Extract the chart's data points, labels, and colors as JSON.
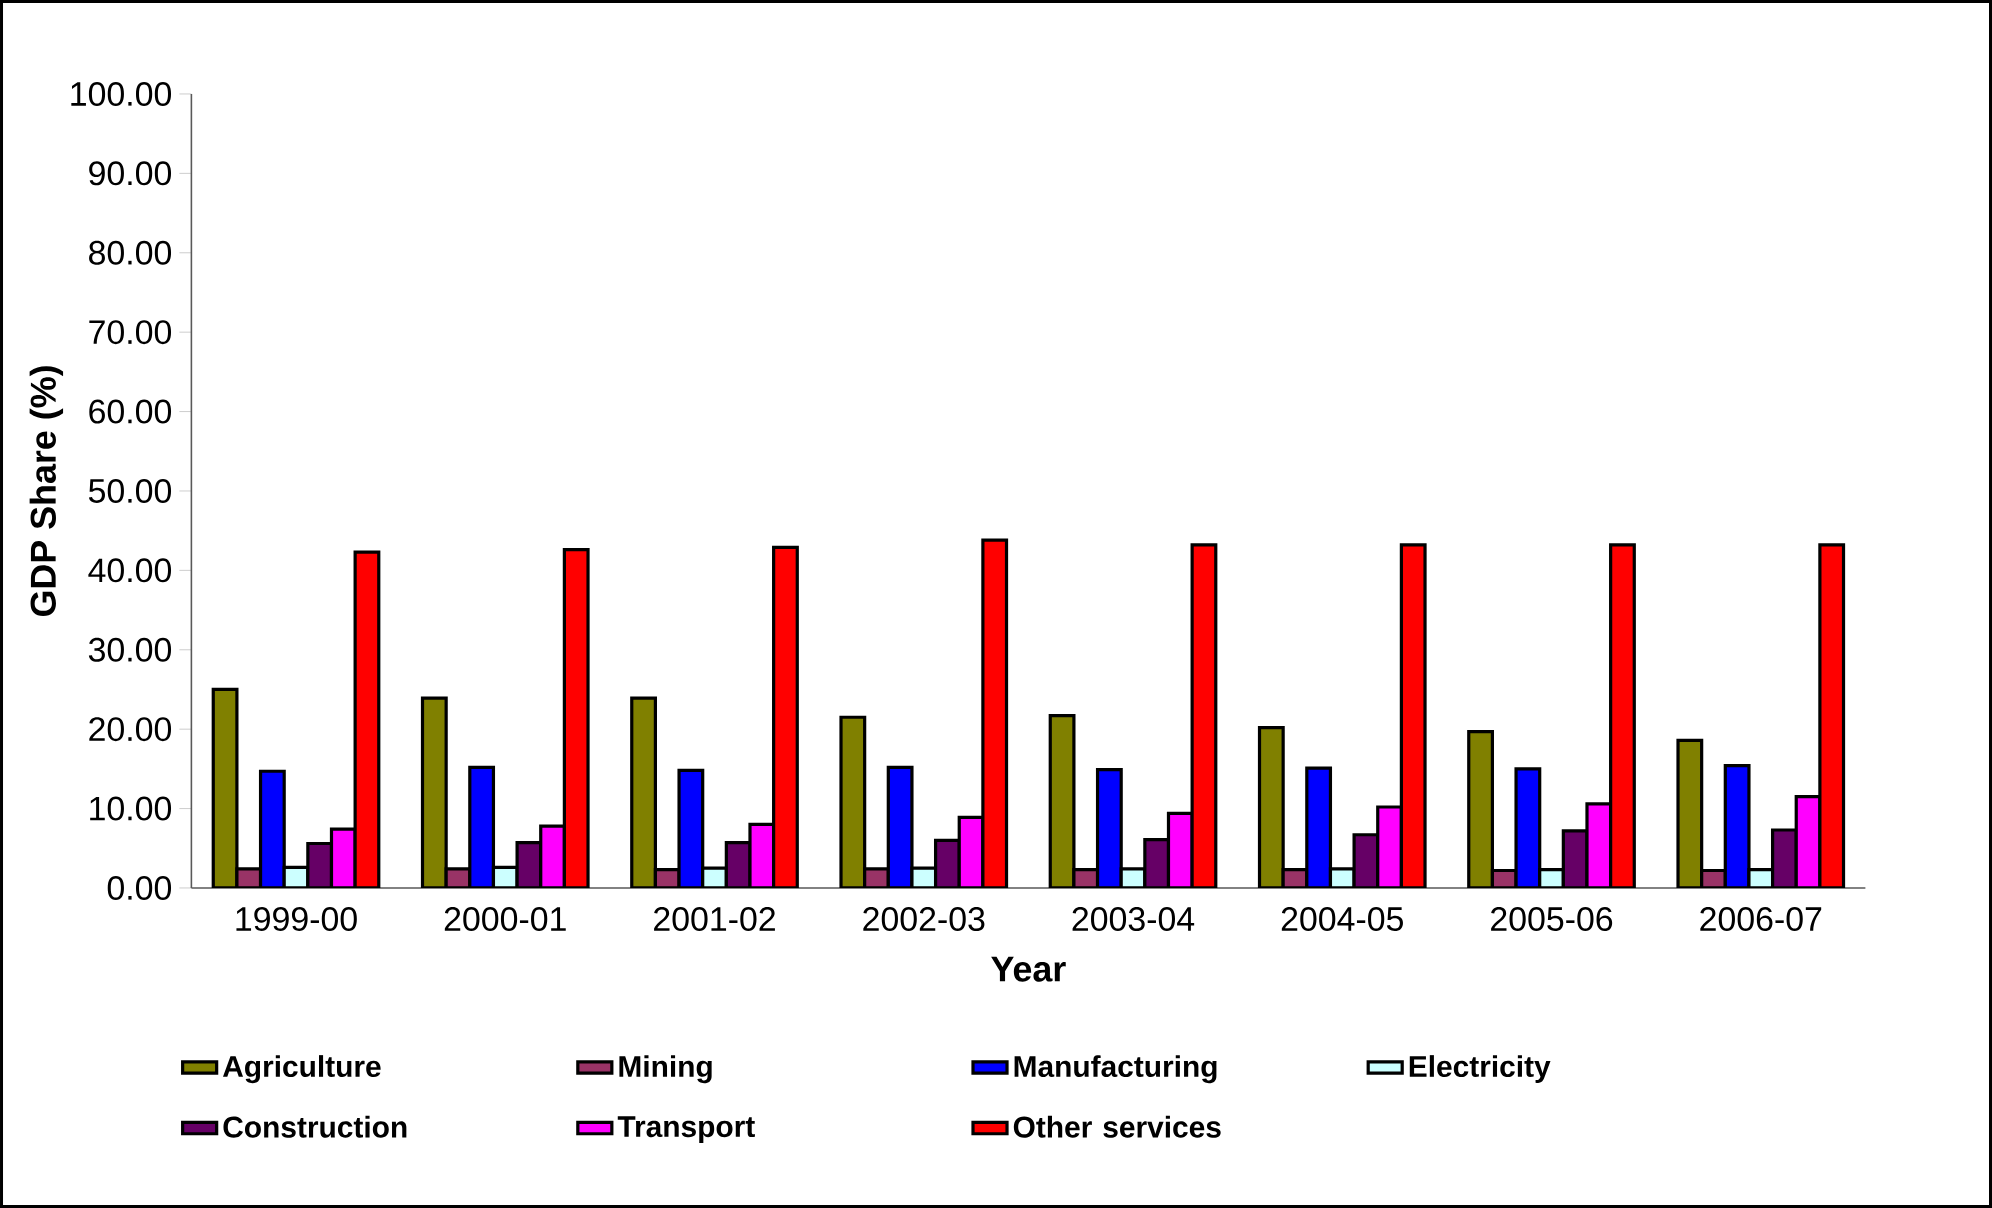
{
  "chart_data": {
    "type": "bar",
    "xlabel": "Year",
    "ylabel": "GDP Share (%)",
    "categories": [
      "1999-00",
      "2000-01",
      "2001-02",
      "2002-03",
      "2003-04",
      "2004-05",
      "2005-06",
      "2006-07"
    ],
    "series": [
      {
        "name": "Agriculture",
        "color": "#808000",
        "values": [
          25.0,
          23.9,
          23.9,
          21.5,
          21.7,
          20.2,
          19.7,
          18.6
        ]
      },
      {
        "name": "Mining",
        "color": "#993366",
        "values": [
          2.4,
          2.4,
          2.3,
          2.4,
          2.3,
          2.3,
          2.2,
          2.2
        ]
      },
      {
        "name": "Manufacturing",
        "color": "#0000ff",
        "values": [
          14.7,
          15.2,
          14.8,
          15.2,
          14.9,
          15.1,
          15.0,
          15.4
        ]
      },
      {
        "name": "Electricity",
        "color": "#ccffff",
        "values": [
          2.6,
          2.6,
          2.5,
          2.5,
          2.4,
          2.4,
          2.3,
          2.3
        ]
      },
      {
        "name": "Construction",
        "color": "#660066",
        "values": [
          5.6,
          5.7,
          5.7,
          6.0,
          6.1,
          6.7,
          7.2,
          7.3
        ]
      },
      {
        "name": "Transport",
        "color": "#ff00ff",
        "values": [
          7.4,
          7.8,
          8.0,
          8.9,
          9.4,
          10.2,
          10.6,
          11.5
        ]
      },
      {
        "name": "Other services",
        "color": "#ff0000",
        "values": [
          42.3,
          42.6,
          42.9,
          43.8,
          43.2,
          43.2,
          43.2,
          43.2
        ]
      }
    ],
    "ylim": [
      0,
      100
    ],
    "yticks": [
      {
        "value": 0,
        "label": "0.00"
      },
      {
        "value": 10,
        "label": "10.00"
      },
      {
        "value": 20,
        "label": "20.00"
      },
      {
        "value": 30,
        "label": "30.00"
      },
      {
        "value": 40,
        "label": "40.00"
      },
      {
        "value": 50,
        "label": "50.00"
      },
      {
        "value": 60,
        "label": "60.00"
      },
      {
        "value": 70,
        "label": "70.00"
      },
      {
        "value": 80,
        "label": "80.00"
      },
      {
        "value": 90,
        "label": "90.00"
      },
      {
        "value": 100,
        "label": "100.00"
      }
    ],
    "grid": false,
    "legend": "bottom"
  }
}
